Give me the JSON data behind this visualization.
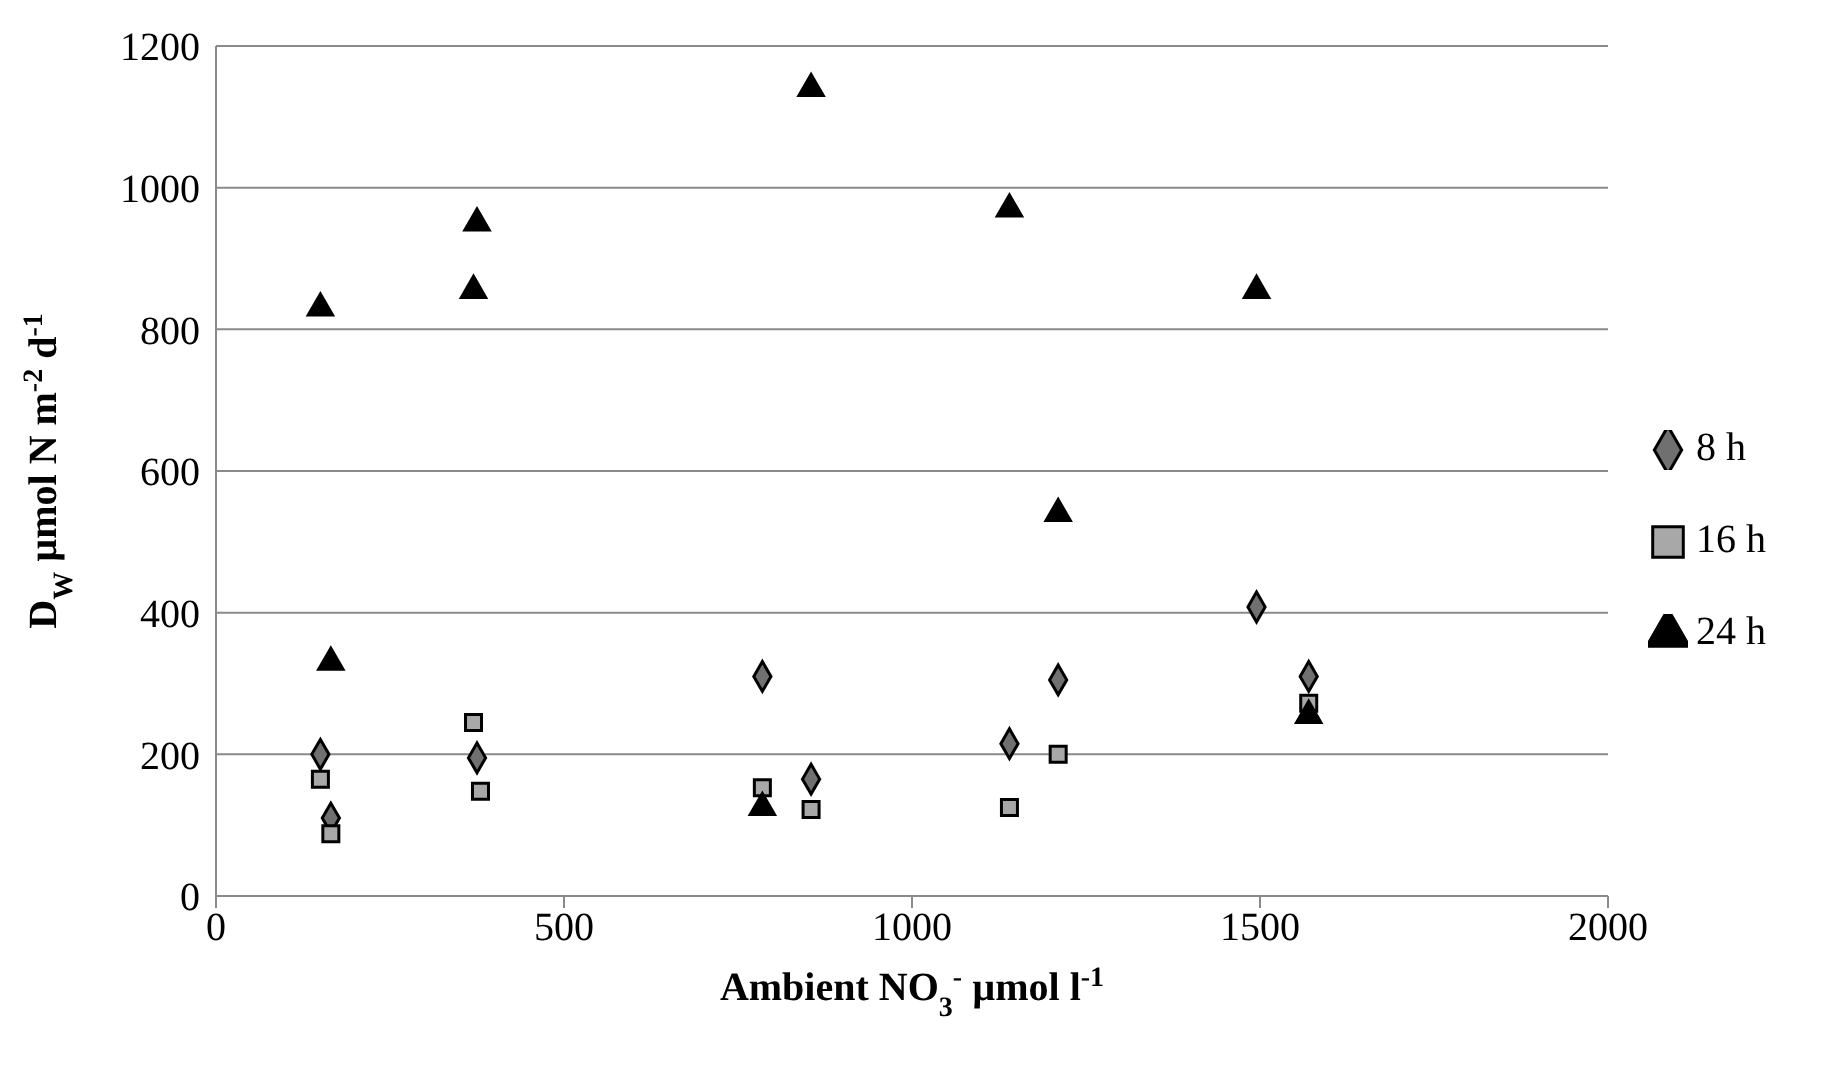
{
  "chart_data": {
    "type": "scatter",
    "xlabel": "Ambient NO$_{3}$$^{-}$ µmol l$^{-1}$",
    "ylabel": "D$_{W}$ µmol N m$^{-2}$ d$^{-1}$",
    "xlim": [
      0,
      2000
    ],
    "xticks": [
      0,
      500,
      1000,
      1500,
      2000
    ],
    "ylim": [
      0,
      1200
    ],
    "yticks": [
      0,
      200,
      400,
      600,
      800,
      1000,
      1200
    ],
    "grid": "y",
    "legend": "right",
    "series": [
      {
        "name": "8 h",
        "color": "#707070",
        "marker": "diamond",
        "x": [
          150,
          165,
          375,
          785,
          855,
          1140,
          1210,
          1495,
          1570
        ],
        "values": [
          200,
          110,
          195,
          310,
          165,
          215,
          305,
          408,
          310
        ]
      },
      {
        "name": "16 h",
        "color": "#a8a8a8",
        "marker": "square",
        "x": [
          150,
          165,
          370,
          380,
          785,
          855,
          1140,
          1210,
          1570
        ],
        "values": [
          165,
          88,
          245,
          148,
          153,
          122,
          125,
          200,
          272
        ]
      },
      {
        "name": "24 h",
        "color": "#000000",
        "marker": "triangle",
        "x": [
          150,
          165,
          375,
          370,
          785,
          855,
          1140,
          1210,
          1495,
          1570
        ],
        "values": [
          830,
          330,
          950,
          855,
          125,
          1140,
          970,
          540,
          855,
          255
        ]
      }
    ]
  }
}
